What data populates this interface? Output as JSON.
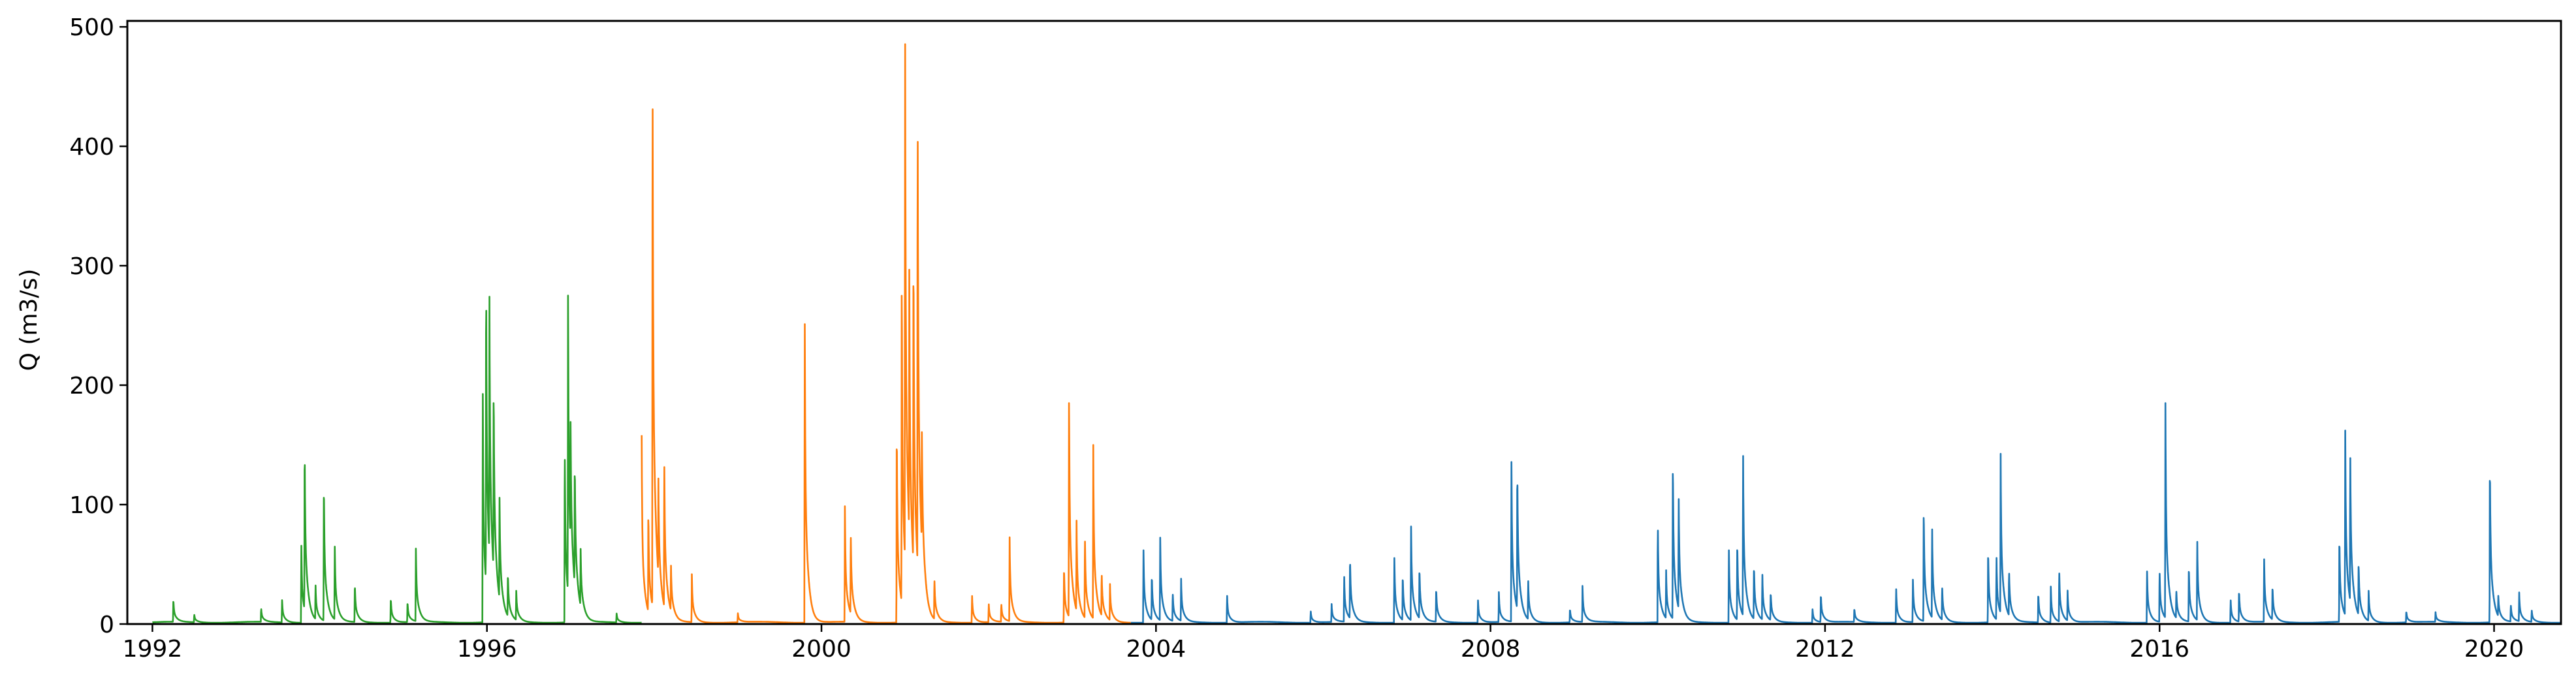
{
  "chart_data": {
    "type": "line",
    "title": "",
    "xlabel": "",
    "ylabel": "Q (m3/s)",
    "xlim": [
      1991.7,
      2020.8
    ],
    "ylim": [
      0,
      505
    ],
    "x_ticks": [
      "1992",
      "1996",
      "2000",
      "2004",
      "2008",
      "2012",
      "2016",
      "2020"
    ],
    "y_ticks": [
      "0",
      "100",
      "200",
      "300",
      "400",
      "500"
    ],
    "grid": false,
    "legend": "none",
    "colors": {
      "series_green": "#2ca02c",
      "series_orange": "#ff7f0e",
      "series_blue": "#1f77b4"
    },
    "series": [
      {
        "color": "#2ca02c",
        "base": 1.5,
        "x_range": [
          1992.0,
          1997.85
        ],
        "peaks": [
          [
            1992.25,
            20
          ],
          [
            1992.5,
            7
          ],
          [
            1993.3,
            12
          ],
          [
            1993.55,
            20
          ],
          [
            1993.78,
            70
          ],
          [
            1993.82,
            146
          ],
          [
            1993.95,
            30
          ],
          [
            1994.05,
            124
          ],
          [
            1994.18,
            66
          ],
          [
            1994.42,
            34
          ],
          [
            1994.85,
            22
          ],
          [
            1995.05,
            18
          ],
          [
            1995.15,
            65
          ],
          [
            1995.95,
            205
          ],
          [
            1995.99,
            272
          ],
          [
            1996.03,
            218
          ],
          [
            1996.08,
            160
          ],
          [
            1996.15,
            90
          ],
          [
            1996.25,
            38
          ],
          [
            1996.35,
            26
          ],
          [
            1996.93,
            158
          ],
          [
            1996.97,
            256
          ],
          [
            1997.0,
            100
          ],
          [
            1997.05,
            108
          ],
          [
            1997.12,
            50
          ],
          [
            1997.55,
            8
          ]
        ]
      },
      {
        "color": "#ff7f0e",
        "base": 1.5,
        "x_range": [
          1997.85,
          2003.7
        ],
        "peaks": [
          [
            1997.85,
            157
          ],
          [
            1997.93,
            88
          ],
          [
            1997.98,
            483
          ],
          [
            1998.05,
            80
          ],
          [
            1998.12,
            132
          ],
          [
            1998.2,
            40
          ],
          [
            1998.45,
            40
          ],
          [
            1999.0,
            8
          ],
          [
            1999.8,
            268
          ],
          [
            2000.28,
            98
          ],
          [
            2000.35,
            72
          ],
          [
            2000.9,
            175
          ],
          [
            2000.96,
            285
          ],
          [
            2001.0,
            462
          ],
          [
            2001.05,
            220
          ],
          [
            2001.1,
            278
          ],
          [
            2001.15,
            405
          ],
          [
            2001.2,
            100
          ],
          [
            2001.35,
            36
          ],
          [
            2001.8,
            24
          ],
          [
            2002.0,
            16
          ],
          [
            2002.15,
            16
          ],
          [
            2002.25,
            70
          ],
          [
            2002.9,
            50
          ],
          [
            2002.96,
            199
          ],
          [
            2003.05,
            75
          ],
          [
            2003.15,
            73
          ],
          [
            2003.25,
            145
          ],
          [
            2003.35,
            38
          ],
          [
            2003.45,
            30
          ]
        ]
      },
      {
        "color": "#1f77b4",
        "base": 1.5,
        "x_range": [
          2003.7,
          2020.8
        ],
        "peaks": [
          [
            2003.85,
            65
          ],
          [
            2003.95,
            40
          ],
          [
            2004.05,
            74
          ],
          [
            2004.2,
            25
          ],
          [
            2004.3,
            35
          ],
          [
            2004.85,
            24
          ],
          [
            2005.85,
            10
          ],
          [
            2006.1,
            15
          ],
          [
            2006.25,
            40
          ],
          [
            2006.32,
            54
          ],
          [
            2006.85,
            58
          ],
          [
            2006.95,
            40
          ],
          [
            2007.05,
            84
          ],
          [
            2007.15,
            45
          ],
          [
            2007.35,
            30
          ],
          [
            2007.85,
            20
          ],
          [
            2008.1,
            25
          ],
          [
            2008.25,
            143
          ],
          [
            2008.32,
            125
          ],
          [
            2008.45,
            34
          ],
          [
            2008.95,
            12
          ],
          [
            2009.1,
            30
          ],
          [
            2010.0,
            88
          ],
          [
            2010.1,
            40
          ],
          [
            2010.18,
            140
          ],
          [
            2010.25,
            98
          ],
          [
            2010.85,
            65
          ],
          [
            2010.95,
            70
          ],
          [
            2011.02,
            141
          ],
          [
            2011.15,
            48
          ],
          [
            2011.25,
            40
          ],
          [
            2011.35,
            25
          ],
          [
            2011.85,
            12
          ],
          [
            2011.95,
            25
          ],
          [
            2012.35,
            12
          ],
          [
            2012.85,
            30
          ],
          [
            2013.05,
            38
          ],
          [
            2013.18,
            100
          ],
          [
            2013.28,
            80
          ],
          [
            2013.4,
            30
          ],
          [
            2013.95,
            65
          ],
          [
            2014.05,
            55
          ],
          [
            2014.1,
            133
          ],
          [
            2014.2,
            40
          ],
          [
            2014.55,
            26
          ],
          [
            2014.7,
            30
          ],
          [
            2014.8,
            46
          ],
          [
            2014.9,
            25
          ],
          [
            2015.85,
            46
          ],
          [
            2016.0,
            46
          ],
          [
            2016.07,
            186
          ],
          [
            2016.2,
            25
          ],
          [
            2016.35,
            50
          ],
          [
            2016.45,
            70
          ],
          [
            2016.85,
            20
          ],
          [
            2016.95,
            28
          ],
          [
            2017.25,
            56
          ],
          [
            2017.35,
            30
          ],
          [
            2018.15,
            76
          ],
          [
            2018.22,
            163
          ],
          [
            2018.28,
            130
          ],
          [
            2018.38,
            46
          ],
          [
            2018.5,
            25
          ],
          [
            2018.95,
            10
          ],
          [
            2019.3,
            8
          ],
          [
            2019.95,
            143
          ],
          [
            2020.05,
            18
          ],
          [
            2020.2,
            15
          ],
          [
            2020.3,
            24
          ],
          [
            2020.45,
            10
          ]
        ]
      }
    ]
  }
}
